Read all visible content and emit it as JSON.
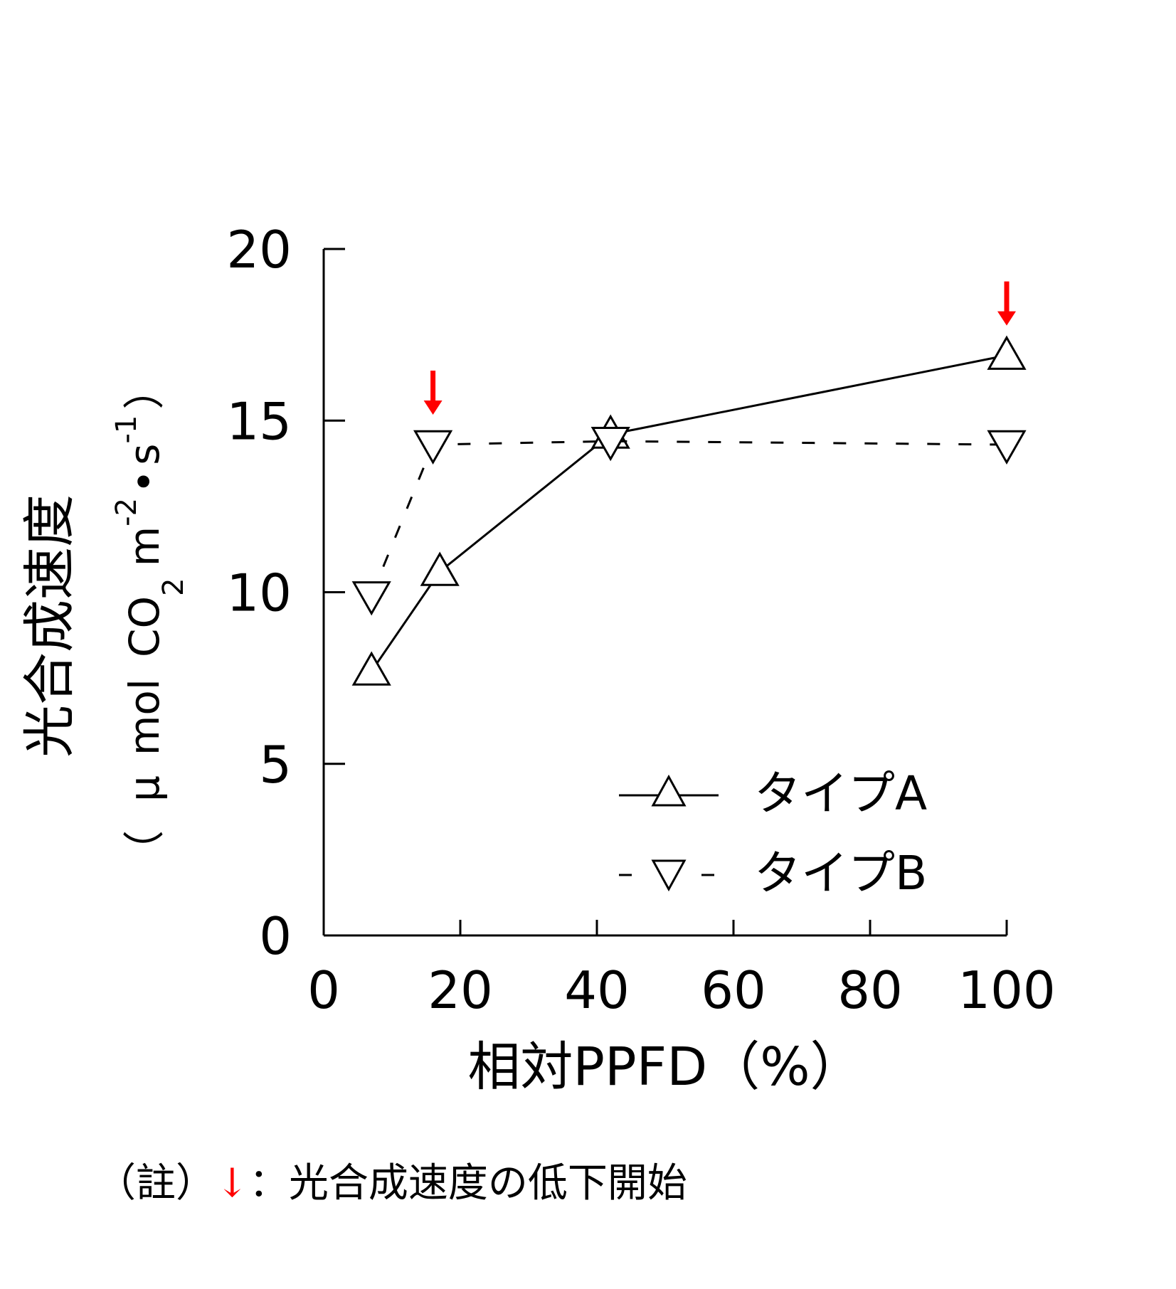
{
  "chart_data": {
    "type": "line",
    "xlabel": "相対PPFD（%）",
    "ylabel_main": "光合成速度",
    "ylabel_unit": {
      "open": "（",
      "mu": "μ",
      "mol": "mol",
      "co": "CO",
      "sub2": "2",
      "m": "m",
      "exp_m": "-2",
      "dot": "•",
      "s": "s",
      "exp_s": "-1",
      "close": "）"
    },
    "xlim": [
      0,
      100
    ],
    "ylim": [
      0,
      20
    ],
    "xticks": [
      0,
      20,
      40,
      60,
      80,
      100
    ],
    "yticks": [
      0,
      5,
      10,
      15,
      20
    ],
    "series": [
      {
        "name": "タイプA",
        "marker": "triangle-up",
        "line": "solid",
        "x": [
          7,
          17,
          42,
          100
        ],
        "y": [
          7.7,
          10.6,
          14.6,
          16.9
        ]
      },
      {
        "name": "タイプB",
        "marker": "triangle-down",
        "line": "dashed",
        "x": [
          7,
          16,
          42,
          100
        ],
        "y": [
          9.9,
          14.3,
          14.4,
          14.3
        ]
      }
    ],
    "annotations": [
      {
        "type": "arrow",
        "color": "#ff0000",
        "x": 16,
        "y": 14.3,
        "meaning": "decline-start"
      },
      {
        "type": "arrow",
        "color": "#ff0000",
        "x": 100,
        "y": 16.9,
        "meaning": "decline-start"
      }
    ],
    "legend_position": "bottom-right",
    "grid": false
  },
  "note": {
    "prefix": "（註）",
    "arrow": "↓",
    "text": "：光合成速度の低下開始"
  },
  "colors": {
    "annotation": "#ff0000",
    "ink": "#000000"
  }
}
